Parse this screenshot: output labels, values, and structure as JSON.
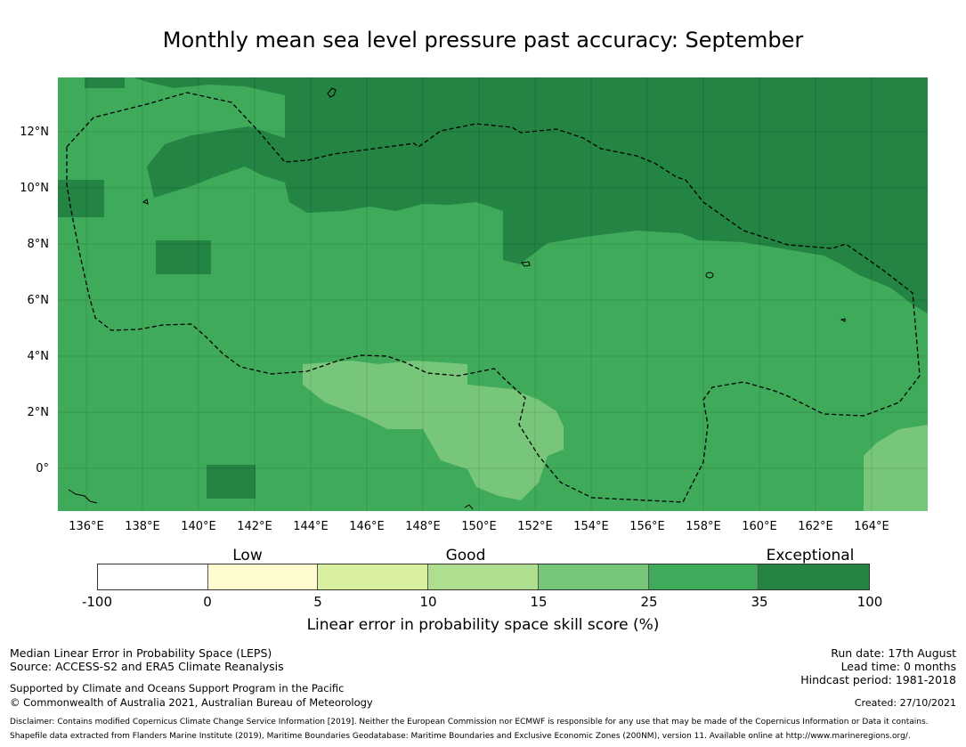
{
  "title": "Monthly mean sea level pressure past accuracy: September",
  "map": {
    "lat_ticks": [
      "12°N",
      "10°N",
      "8°N",
      "6°N",
      "4°N",
      "2°N",
      "0°"
    ],
    "lon_ticks": [
      "136°E",
      "138°E",
      "140°E",
      "142°E",
      "144°E",
      "146°E",
      "148°E",
      "150°E",
      "152°E",
      "154°E",
      "156°E",
      "158°E",
      "160°E",
      "162°E",
      "164°E"
    ]
  },
  "colorbar": {
    "categories": [
      "Low",
      "Good",
      "Exceptional"
    ],
    "ticks": [
      "-100",
      "0",
      "5",
      "10",
      "15",
      "25",
      "35",
      "100"
    ],
    "colors": [
      "#ffffff",
      "#fffdd0",
      "#d8efa0",
      "#addf8e",
      "#78c679",
      "#3faa5a",
      "#238443"
    ],
    "label": "Linear error in probability space skill score (%)"
  },
  "footer": {
    "left_line1": "Median Linear Error in Probability Space (LEPS)",
    "left_line2": "Source: ACCESS-S2 and ERA5 Climate Reanalysis",
    "left_line3": "Supported by Climate and Oceans Support Program in the Pacific",
    "left_line4": "© Commonwealth of Australia 2021, Australian Bureau of Meteorology",
    "run_date": "Run date: 17th August",
    "lead_time": "Lead time: 0 months",
    "hindcast": "Hindcast period: 1981-2018",
    "created": "Created: 27/10/2021",
    "disclaimer": "Disclaimer: Contains modified Copernicus Climate Change Service Information [2019]. Neither the European Commission nor ECMWF is responsible for any use that may be made of the Copernicus Information or Data it contains.",
    "shapefile": "Shapefile data extracted from Flanders Marine Institute (2019), Maritime Boundaries Geodatabase: Maritime Boundaries and Exclusive Economic Zones (200NM), version 11. Available online at http://www.marineregions.org/."
  }
}
